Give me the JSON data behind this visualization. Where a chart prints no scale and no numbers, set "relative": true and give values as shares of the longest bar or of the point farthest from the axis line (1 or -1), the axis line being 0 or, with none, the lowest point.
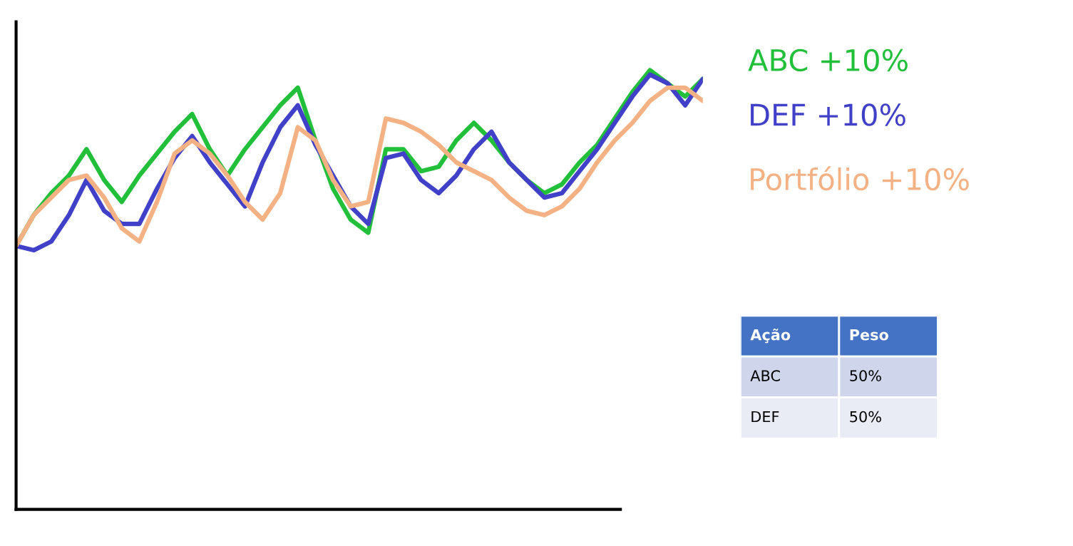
{
  "chart_data": {
    "type": "line",
    "relative": true,
    "categories": [
      null,
      null,
      null,
      null,
      null,
      null,
      null,
      null,
      null,
      null,
      null,
      null,
      null,
      null,
      null,
      null,
      null,
      null,
      null,
      null,
      null,
      null,
      null,
      null,
      null,
      null,
      null,
      null,
      null,
      null,
      null,
      null,
      null,
      null,
      null,
      null,
      null,
      null,
      null,
      null
    ],
    "series": [
      {
        "name": "ABC +10%",
        "color": "#22c03a",
        "values": [
          0.6,
          0.67,
          0.72,
          0.76,
          0.82,
          0.75,
          0.7,
          0.76,
          0.81,
          0.86,
          0.9,
          0.82,
          0.76,
          0.82,
          0.87,
          0.92,
          0.96,
          0.84,
          0.73,
          0.66,
          0.63,
          0.82,
          0.82,
          0.77,
          0.78,
          0.84,
          0.88,
          0.84,
          0.79,
          0.75,
          0.72,
          0.74,
          0.79,
          0.83,
          0.89,
          0.95,
          1.0,
          0.97,
          0.94,
          0.98
        ]
      },
      {
        "name": "DEF +10%",
        "color": "#4040c8",
        "values": [
          0.6,
          0.59,
          0.61,
          0.67,
          0.75,
          0.68,
          0.65,
          0.65,
          0.73,
          0.8,
          0.85,
          0.79,
          0.74,
          0.69,
          0.79,
          0.87,
          0.92,
          0.83,
          0.76,
          0.69,
          0.65,
          0.8,
          0.81,
          0.75,
          0.72,
          0.76,
          0.82,
          0.86,
          0.79,
          0.75,
          0.71,
          0.72,
          0.77,
          0.82,
          0.88,
          0.94,
          0.99,
          0.97,
          0.92,
          0.98
        ]
      },
      {
        "name": "Portfólio +10%",
        "color": "#f4b183",
        "values": [
          0.6,
          0.67,
          0.71,
          0.75,
          0.76,
          0.71,
          0.64,
          0.61,
          0.7,
          0.81,
          0.84,
          0.81,
          0.76,
          0.7,
          0.66,
          0.72,
          0.87,
          0.84,
          0.75,
          0.69,
          0.7,
          0.89,
          0.88,
          0.86,
          0.83,
          0.79,
          0.77,
          0.75,
          0.71,
          0.68,
          0.67,
          0.69,
          0.73,
          0.79,
          0.84,
          0.88,
          0.93,
          0.96,
          0.96,
          0.93
        ]
      }
    ],
    "legend": "right",
    "grid": false,
    "annotations": [
      "Ação",
      "Peso",
      "ABC",
      "50%",
      "DEF",
      "50%"
    ]
  }
}
